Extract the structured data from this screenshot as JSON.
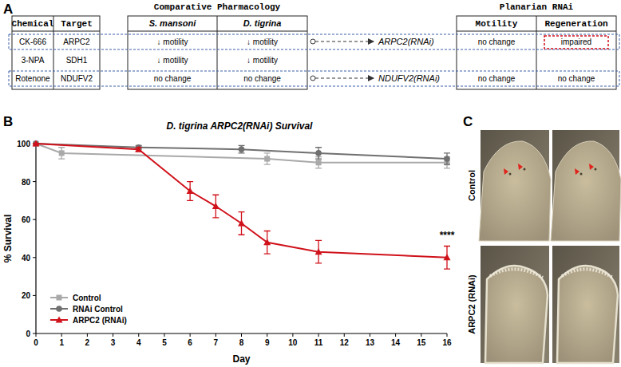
{
  "panel_labels": [
    "A",
    "B",
    "C"
  ],
  "panel_a": {
    "group_titles": [
      "Comparative Pharmacology",
      "Planarian RNAi"
    ],
    "headers": [
      "Chemical",
      "Target",
      "S. mansoni",
      "D. tigrina",
      "Motility",
      "Regeneration"
    ],
    "rows": [
      {
        "chemical": "CK-666",
        "target": "ARPC2",
        "s_mansoni": "↓ motility",
        "d_tigrina": "↓ motility",
        "rnai": "ARPC2(RNAi)",
        "motility": "no change",
        "regeneration": "impaired"
      },
      {
        "chemical": "3-NPA",
        "target": "SDH1",
        "s_mansoni": "↓ motility",
        "d_tigrina": "↓ motility"
      },
      {
        "chemical": "Rotenone",
        "target": "NDUFV2",
        "s_mansoni": "no change",
        "d_tigrina": "no change",
        "rnai": "NDUFV2(RNAi)",
        "motility": "no change",
        "regeneration": "no change"
      }
    ]
  },
  "chart_data": {
    "type": "line",
    "title": "D. tigrina ARPC2(RNAi) Survival",
    "x_label": "Day",
    "y_label": "% Survival",
    "xlim": [
      0,
      16
    ],
    "xticks": [
      0,
      1,
      2,
      3,
      4,
      5,
      6,
      7,
      8,
      9,
      10,
      11,
      12,
      13,
      14,
      15,
      16
    ],
    "ylim": [
      0,
      100
    ],
    "yticks": [
      0,
      20,
      40,
      60,
      80,
      100
    ],
    "legend": "lower left",
    "series": [
      {
        "name": "Control",
        "color": "#a9a9a9",
        "marker": "square",
        "x": [
          0,
          1,
          9,
          11,
          16
        ],
        "values": [
          100,
          95,
          92,
          90,
          90
        ],
        "errors": [
          0,
          3,
          3,
          3,
          3
        ]
      },
      {
        "name": "RNAi Control",
        "color": "#707070",
        "marker": "circle",
        "x": [
          0,
          4,
          8,
          11,
          16
        ],
        "values": [
          100,
          98,
          97,
          95,
          92
        ],
        "errors": [
          0,
          1,
          2,
          3,
          3
        ]
      },
      {
        "name": "ARPC2 (RNAi)",
        "color": "#d0121b",
        "marker": "triangle",
        "x": [
          0,
          4,
          6,
          7,
          8,
          9,
          11,
          16
        ],
        "values": [
          100,
          97,
          75,
          67,
          58,
          48,
          43,
          40
        ],
        "errors": [
          0,
          1,
          5,
          6,
          6,
          6,
          6,
          6
        ]
      }
    ],
    "annotations": [
      {
        "text": "****",
        "x": 16,
        "y": 50
      }
    ]
  },
  "panel_c": {
    "row_labels": [
      "Control",
      "ARPC2 (RNAi)"
    ]
  }
}
